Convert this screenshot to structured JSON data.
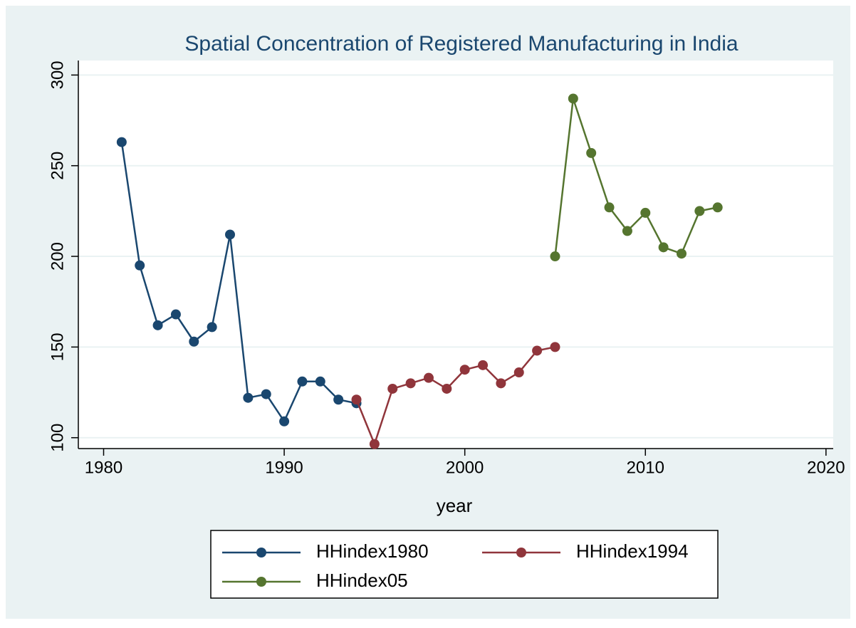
{
  "chart_data": {
    "type": "line",
    "title": "Spatial Concentration of Registered Manufacturing in India",
    "x_label": "year",
    "x": [
      1981,
      1982,
      1983,
      1984,
      1985,
      1986,
      1987,
      1988,
      1989,
      1990,
      1991,
      1992,
      1993,
      1994,
      1995,
      1996,
      1997,
      1998,
      1999,
      2000,
      2001,
      2002,
      2003,
      2004,
      2005,
      2006,
      2007,
      2008,
      2009,
      2010,
      2011,
      2012,
      2013,
      2014
    ],
    "series": [
      {
        "name": "HHindex1980",
        "color": "#1a476f",
        "values": [
          263,
          195,
          162,
          168,
          153,
          161,
          212,
          122,
          124,
          109,
          131,
          131,
          121,
          119,
          null,
          null,
          null,
          null,
          null,
          null,
          null,
          null,
          null,
          null,
          null,
          null,
          null,
          null,
          null,
          null,
          null,
          null,
          null,
          null
        ]
      },
      {
        "name": "HHindex1994",
        "color": "#90353b",
        "values": [
          null,
          null,
          null,
          null,
          null,
          null,
          null,
          null,
          null,
          null,
          null,
          null,
          null,
          121,
          96.5,
          127,
          130,
          133,
          127,
          137.5,
          140,
          130,
          136,
          148,
          150,
          null,
          null,
          null,
          null,
          null,
          null,
          null,
          null,
          null
        ]
      },
      {
        "name": "HHindex05",
        "color": "#55752f",
        "values": [
          null,
          null,
          null,
          null,
          null,
          null,
          null,
          null,
          null,
          null,
          null,
          null,
          null,
          null,
          null,
          null,
          null,
          null,
          null,
          null,
          null,
          null,
          null,
          null,
          200,
          287,
          257,
          227,
          214,
          224,
          205,
          201.5,
          225,
          227
        ]
      }
    ],
    "xlim": [
      1978.6,
      2020.4
    ],
    "xticks": [
      1980,
      1990,
      2000,
      2010,
      2020
    ],
    "ylim": [
      94,
      308
    ],
    "yticks": [
      100,
      150,
      200,
      250,
      300
    ],
    "grid": true,
    "legend": "bottom"
  }
}
